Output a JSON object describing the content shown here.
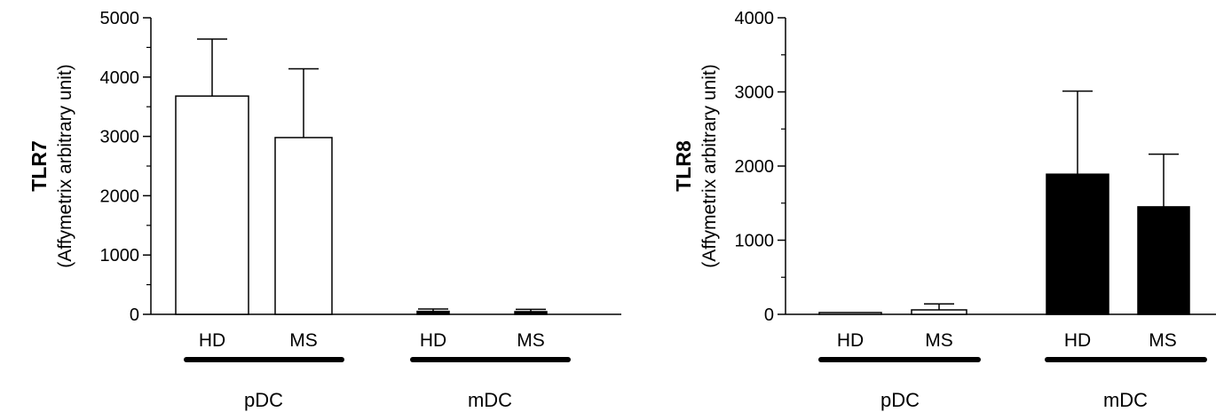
{
  "chart_data": [
    {
      "type": "bar",
      "ylabel": "TLR7",
      "ylabel_sub": "(Affymetrix arbitrary unit)",
      "ylim": [
        0,
        5000
      ],
      "yticks": [
        0,
        1000,
        2000,
        3000,
        4000,
        5000
      ],
      "groups": [
        {
          "label": "pDC",
          "bars": [
            {
              "category": "HD",
              "value": 3680,
              "error": 960,
              "fill": "#ffffff"
            },
            {
              "category": "MS",
              "value": 2980,
              "error": 1160,
              "fill": "#ffffff"
            }
          ]
        },
        {
          "label": "mDC",
          "bars": [
            {
              "category": "HD",
              "value": 50,
              "error": 40,
              "fill": "#000000"
            },
            {
              "category": "MS",
              "value": 45,
              "error": 40,
              "fill": "#000000"
            }
          ]
        }
      ]
    },
    {
      "type": "bar",
      "ylabel": "TLR8",
      "ylabel_sub": "(Affymetrix arbitrary unit)",
      "ylim": [
        0,
        4000
      ],
      "yticks": [
        0,
        1000,
        2000,
        3000,
        4000
      ],
      "groups": [
        {
          "label": "pDC",
          "bars": [
            {
              "category": "HD",
              "value": 15,
              "error": 5,
              "fill": "#ffffff"
            },
            {
              "category": "MS",
              "value": 60,
              "error": 80,
              "fill": "#ffffff"
            }
          ]
        },
        {
          "label": "mDC",
          "bars": [
            {
              "category": "HD",
              "value": 1890,
              "error": 1120,
              "fill": "#000000"
            },
            {
              "category": "MS",
              "value": 1450,
              "error": 710,
              "fill": "#000000"
            }
          ]
        }
      ]
    }
  ]
}
